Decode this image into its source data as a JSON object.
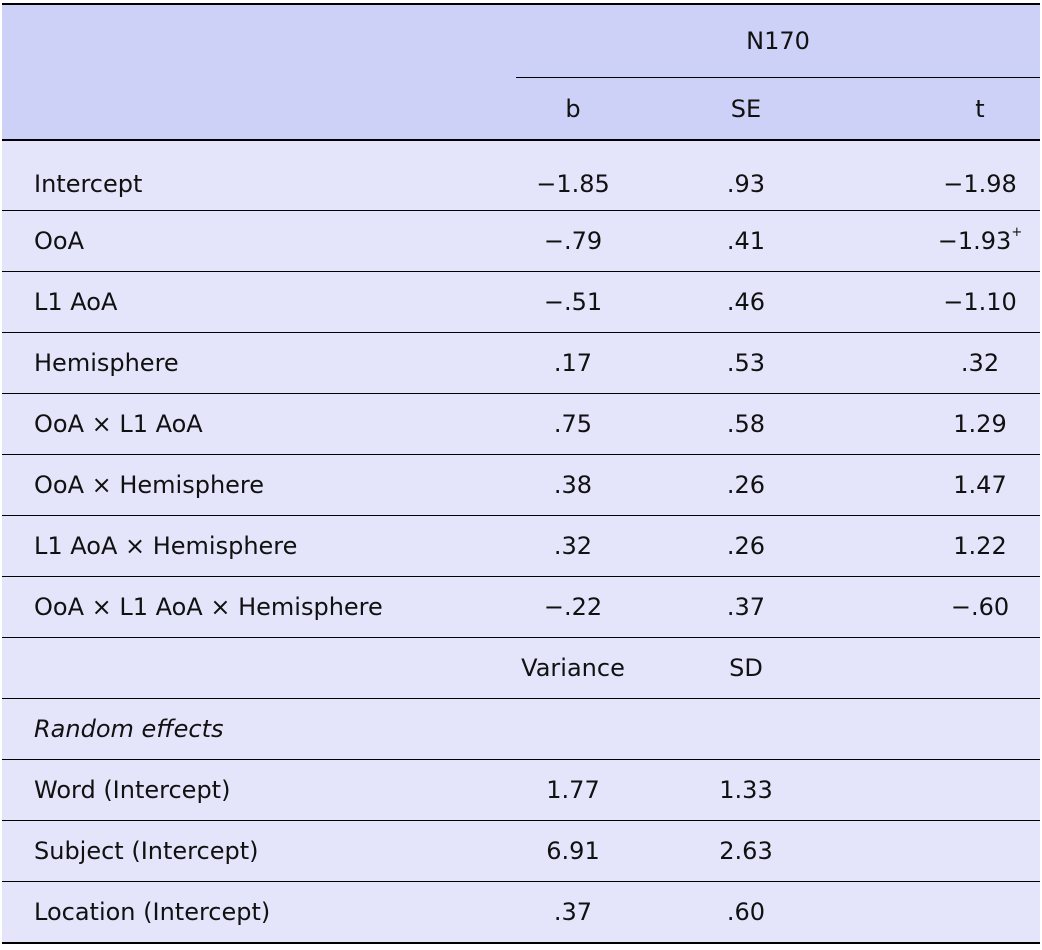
{
  "header": {
    "group_label": "N170",
    "col_b": "b",
    "col_se": "SE",
    "col_t": "t"
  },
  "fixed_rows": [
    {
      "label": "Intercept",
      "b": "−1.85",
      "se": ".93",
      "t": "−1.98",
      "t_mark": ""
    },
    {
      "label": "OoA",
      "b": "−.79",
      "se": ".41",
      "t": "−1.93",
      "t_mark": "+"
    },
    {
      "label": "L1 AoA",
      "b": "−.51",
      "se": ".46",
      "t": "−1.10",
      "t_mark": ""
    },
    {
      "label": "Hemisphere",
      "b": ".17",
      "se": ".53",
      "t": ".32",
      "t_mark": ""
    },
    {
      "label": "OoA × L1 AoA",
      "b": ".75",
      "se": ".58",
      "t": "1.29",
      "t_mark": ""
    },
    {
      "label": "OoA × Hemisphere",
      "b": ".38",
      "se": ".26",
      "t": "1.47",
      "t_mark": ""
    },
    {
      "label": "L1 AoA × Hemisphere",
      "b": ".32",
      "se": ".26",
      "t": "1.22",
      "t_mark": ""
    },
    {
      "label": "OoA × L1 AoA × Hemisphere",
      "b": "−.22",
      "se": ".37",
      "t": "−.60",
      "t_mark": ""
    }
  ],
  "random_header": {
    "variance_label": "Variance",
    "sd_label": "SD"
  },
  "random_section_label": "Random effects",
  "random_rows": [
    {
      "label": "Word (Intercept)",
      "variance": "1.77",
      "sd": "1.33"
    },
    {
      "label": "Subject (Intercept)",
      "variance": "6.91",
      "sd": "2.63"
    },
    {
      "label": "Location (Intercept)",
      "variance": ".37",
      "sd": ".60"
    }
  ],
  "colors": {
    "header_bg": "#cdd1f8",
    "body_bg": "#e4e5fa",
    "rule": "#000000"
  }
}
